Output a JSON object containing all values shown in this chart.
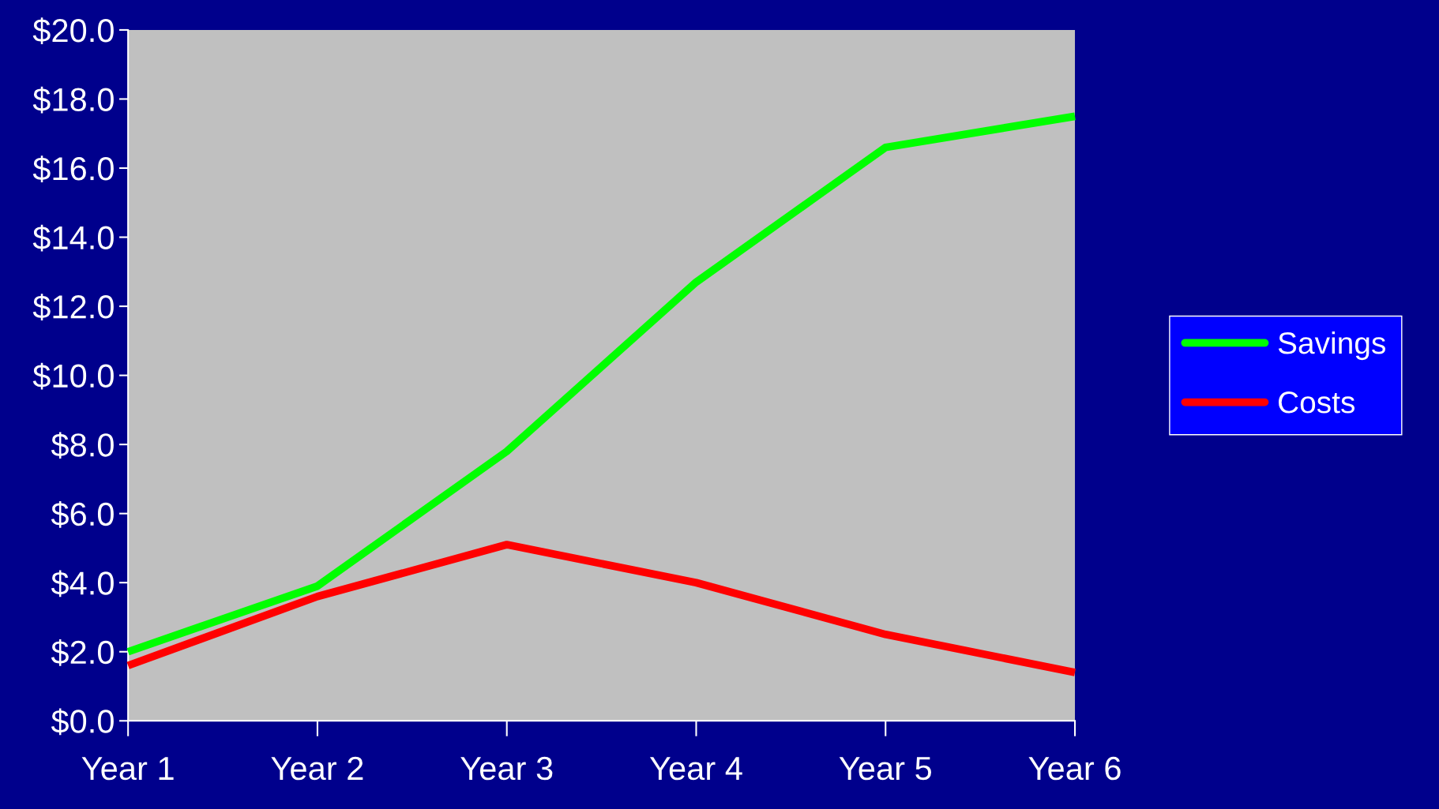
{
  "chart_data": {
    "type": "line",
    "categories": [
      "Year 1",
      "Year 2",
      "Year 3",
      "Year 4",
      "Year 5",
      "Year 6"
    ],
    "series": [
      {
        "name": "Savings",
        "color": "#00ff00",
        "values": [
          2.0,
          3.9,
          7.8,
          12.7,
          16.6,
          17.5
        ]
      },
      {
        "name": "Costs",
        "color": "#ff0000",
        "values": [
          1.6,
          3.6,
          5.1,
          4.0,
          2.5,
          1.4
        ]
      }
    ],
    "ylim": [
      0,
      20
    ],
    "yticks": [
      {
        "value": 0,
        "label": "$0.0"
      },
      {
        "value": 2,
        "label": "$2.0"
      },
      {
        "value": 4,
        "label": "$4.0"
      },
      {
        "value": 6,
        "label": "$6.0"
      },
      {
        "value": 8,
        "label": "$8.0"
      },
      {
        "value": 10,
        "label": "$10.0"
      },
      {
        "value": 12,
        "label": "$12.0"
      },
      {
        "value": 14,
        "label": "$14.0"
      },
      {
        "value": 16,
        "label": "$16.0"
      },
      {
        "value": 18,
        "label": "$18.0"
      },
      {
        "value": 20,
        "label": "$20.0"
      }
    ],
    "grid": false,
    "legend": "right",
    "marker": "none",
    "line_style": "solid"
  }
}
